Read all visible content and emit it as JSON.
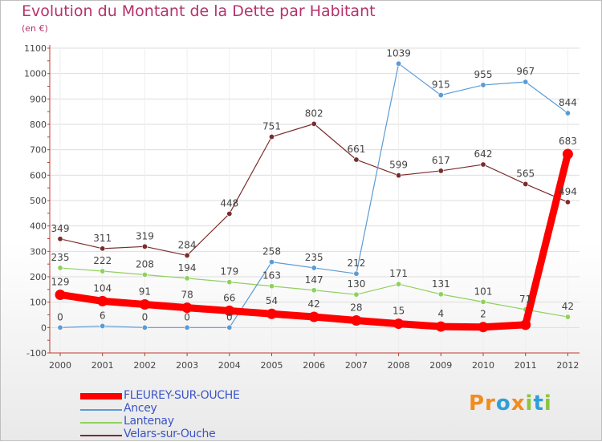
{
  "title": "Evolution du Montant de la Dette par Habitant",
  "unit_label": "(en €)",
  "logo": {
    "text": "Proxiti",
    "colors": [
      "#f28c1e",
      "#2f9fd8",
      "#8bc53f"
    ]
  },
  "colors": {
    "title": "#b5326b",
    "axis": "#444444",
    "legend_text": "#3b55c6",
    "grid": "#dddddd"
  },
  "chart_data": {
    "type": "line",
    "title": "Evolution du Montant de la Dette par Habitant",
    "ylabel": "(en €)",
    "xlabel": "",
    "x": [
      "2000",
      "2001",
      "2002",
      "2003",
      "2004",
      "2005",
      "2006",
      "2007",
      "2008",
      "2009",
      "2010",
      "2011",
      "2012"
    ],
    "ylim": [
      -100,
      1100
    ],
    "yticks": [
      -100,
      0,
      100,
      200,
      300,
      400,
      500,
      600,
      700,
      800,
      900,
      1000,
      1100
    ],
    "legend_position": "bottom-left",
    "series": [
      {
        "name": "FLEUREY-SUR-OUCHE",
        "color": "#ff0000",
        "values": [
          129,
          104,
          91,
          78,
          66,
          54,
          42,
          28,
          15,
          4,
          2,
          11,
          683
        ],
        "labels": [
          "129",
          "104",
          "91",
          "78",
          "66",
          "54",
          "42",
          "28",
          "15",
          "4",
          "2",
          "",
          "683"
        ]
      },
      {
        "name": "Ancey",
        "color": "#5b9bd5",
        "values": [
          0,
          6,
          0,
          0,
          0,
          258,
          235,
          212,
          1039,
          915,
          955,
          967,
          844
        ],
        "labels": [
          "0",
          "6",
          "0",
          "0",
          "0",
          "258",
          "235",
          "212",
          "1039",
          "915",
          "955",
          "967",
          "844"
        ]
      },
      {
        "name": "Lantenay",
        "color": "#8fd15d",
        "values": [
          235,
          222,
          208,
          194,
          179,
          163,
          147,
          130,
          171,
          131,
          101,
          71,
          42
        ],
        "labels": [
          "235",
          "222",
          "208",
          "194",
          "179",
          "163",
          "147",
          "130",
          "171",
          "131",
          "101",
          "71",
          "42"
        ]
      },
      {
        "name": "Velars-sur-Ouche",
        "color": "#7b2c2c",
        "values": [
          349,
          311,
          319,
          284,
          448,
          751,
          802,
          661,
          599,
          617,
          642,
          565,
          494
        ],
        "labels": [
          "349",
          "311",
          "319",
          "284",
          "448",
          "751",
          "802",
          "661",
          "599",
          "617",
          "642",
          "565",
          "494"
        ]
      }
    ]
  }
}
